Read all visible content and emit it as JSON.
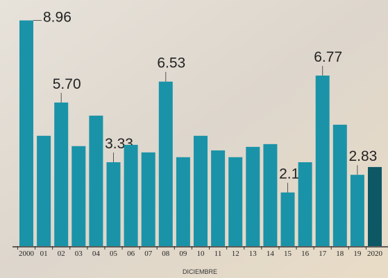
{
  "chart_data": {
    "type": "bar",
    "categories": [
      "2000",
      "01",
      "02",
      "03",
      "04",
      "05",
      "06",
      "07",
      "08",
      "09",
      "10",
      "11",
      "12",
      "13",
      "14",
      "15",
      "16",
      "17",
      "18",
      "19",
      "2020"
    ],
    "values": [
      8.96,
      4.38,
      5.7,
      3.97,
      5.18,
      3.33,
      4.02,
      3.72,
      6.53,
      3.53,
      4.38,
      3.8,
      3.53,
      3.94,
      4.05,
      2.13,
      3.33,
      6.77,
      4.82,
      2.83,
      3.14
    ],
    "value_labels": [
      "8.96",
      null,
      "5.70",
      null,
      null,
      "3.33",
      null,
      null,
      "6.53",
      null,
      null,
      null,
      null,
      null,
      null,
      "2.13",
      null,
      "6.77",
      null,
      "2.83",
      null
    ],
    "color": "#1a93a8",
    "highlight_color": "#0e5866",
    "x_label": "DICIEMBRE",
    "ylim": [
      0,
      9
    ]
  }
}
